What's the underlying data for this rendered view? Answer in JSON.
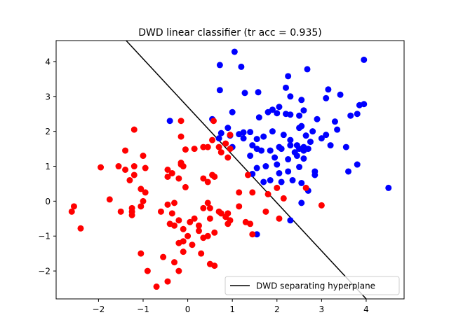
{
  "chart_data": {
    "type": "scatter",
    "title": "DWD linear classifier (tr acc = 0.935)",
    "xlabel": "",
    "ylabel": "",
    "xlim": [
      -2.95,
      4.85
    ],
    "ylim": [
      -2.8,
      4.6
    ],
    "xticks": [
      -2,
      -1,
      0,
      1,
      2,
      3,
      4
    ],
    "yticks": [
      -2,
      -1,
      0,
      1,
      2,
      3,
      4
    ],
    "tick_labels_x": [
      "−2",
      "−1",
      "0",
      "1",
      "2",
      "3",
      "4"
    ],
    "tick_labels_y": [
      "−2",
      "−1",
      "0",
      "1",
      "2",
      "3",
      "4"
    ],
    "grid": false,
    "legend": {
      "placement": "lower-right",
      "entries": [
        "DWD separating hyperplane"
      ]
    },
    "hyperplane": {
      "name": "DWD separating hyperplane",
      "color": "#000000",
      "x": [
        -1.38,
        4.0
      ],
      "y": [
        4.6,
        -2.8
      ]
    },
    "series": [
      {
        "color": "#0000ff",
        "points": [
          [
            1.05,
            4.28
          ],
          [
            0.72,
            3.9
          ],
          [
            1.2,
            3.85
          ],
          [
            2.68,
            3.78
          ],
          [
            3.95,
            4.05
          ],
          [
            2.25,
            3.58
          ],
          [
            0.72,
            3.18
          ],
          [
            1.28,
            3.1
          ],
          [
            1.58,
            3.12
          ],
          [
            2.2,
            3.25
          ],
          [
            3.15,
            3.2
          ],
          [
            3.1,
            2.95
          ],
          [
            3.42,
            3.05
          ],
          [
            2.3,
            3.0
          ],
          [
            2.55,
            2.9
          ],
          [
            2.05,
            2.7
          ],
          [
            2.9,
            2.35
          ],
          [
            3.65,
            2.45
          ],
          [
            3.3,
            2.28
          ],
          [
            3.85,
            2.75
          ],
          [
            3.95,
            2.78
          ],
          [
            3.8,
            2.5
          ],
          [
            2.6,
            2.6
          ],
          [
            2.5,
            2.45
          ],
          [
            2.2,
            2.5
          ],
          [
            2.3,
            2.48
          ],
          [
            1.8,
            2.55
          ],
          [
            1.9,
            2.62
          ],
          [
            2.0,
            2.52
          ],
          [
            1.6,
            2.4
          ],
          [
            1.0,
            2.55
          ],
          [
            0.55,
            2.35
          ],
          [
            0.9,
            2.1
          ],
          [
            0.75,
            1.95
          ],
          [
            0.95,
            1.88
          ],
          [
            1.15,
            1.92
          ],
          [
            1.25,
            1.97
          ],
          [
            1.4,
            1.98
          ],
          [
            1.55,
            1.78
          ],
          [
            1.7,
            1.85
          ],
          [
            1.9,
            2.0
          ],
          [
            2.15,
            1.9
          ],
          [
            2.5,
            2.1
          ],
          [
            2.55,
            2.15
          ],
          [
            2.8,
            2.0
          ],
          [
            2.65,
            1.88
          ],
          [
            3.1,
            1.9
          ],
          [
            2.75,
            1.7
          ],
          [
            2.45,
            1.6
          ],
          [
            2.3,
            1.75
          ],
          [
            2.05,
            1.55
          ],
          [
            2.3,
            1.6
          ],
          [
            2.5,
            1.5
          ],
          [
            2.6,
            1.45
          ],
          [
            2.4,
            1.4
          ],
          [
            2.6,
            1.55
          ],
          [
            2.7,
            1.5
          ],
          [
            3.0,
            1.8
          ],
          [
            3.2,
            1.6
          ],
          [
            3.35,
            2.05
          ],
          [
            3.55,
            1.55
          ],
          [
            1.0,
            1.55
          ],
          [
            1.25,
            1.8
          ],
          [
            1.45,
            1.6
          ],
          [
            1.55,
            1.5
          ],
          [
            1.65,
            1.45
          ],
          [
            1.85,
            1.45
          ],
          [
            2.1,
            1.5
          ],
          [
            1.4,
            1.3
          ],
          [
            1.95,
            1.25
          ],
          [
            2.25,
            1.2
          ],
          [
            2.45,
            1.3
          ],
          [
            2.0,
            1.05
          ],
          [
            1.55,
            0.95
          ],
          [
            1.75,
            1.0
          ],
          [
            2.05,
            0.8
          ],
          [
            2.25,
            0.85
          ],
          [
            2.5,
            0.98
          ],
          [
            2.6,
            1.22
          ],
          [
            2.85,
            0.75
          ],
          [
            2.85,
            0.85
          ],
          [
            3.6,
            0.85
          ],
          [
            3.8,
            1.05
          ],
          [
            4.5,
            0.38
          ],
          [
            1.45,
            0.78
          ],
          [
            1.7,
            0.55
          ],
          [
            1.85,
            0.6
          ],
          [
            2.1,
            0.55
          ],
          [
            2.35,
            0.6
          ],
          [
            2.55,
            0.52
          ],
          [
            2.7,
            0.3
          ],
          [
            2.55,
            -0.05
          ],
          [
            2.3,
            -0.55
          ],
          [
            1.55,
            -0.95
          ],
          [
            -0.4,
            2.3
          ],
          [
            0.7,
            1.8
          ]
        ]
      },
      {
        "color": "#ff0000",
        "points": [
          [
            -1.2,
            2.05
          ],
          [
            -0.15,
            2.3
          ],
          [
            0.58,
            2.3
          ],
          [
            -0.15,
            1.85
          ],
          [
            -1.4,
            1.45
          ],
          [
            -1.55,
            1.0
          ],
          [
            -1.0,
            1.3
          ],
          [
            -1.95,
            0.97
          ],
          [
            -1.2,
            1.0
          ],
          [
            -1.4,
            0.9
          ],
          [
            -1.2,
            0.75
          ],
          [
            -1.3,
            0.6
          ],
          [
            -0.95,
            0.95
          ],
          [
            -1.05,
            0.35
          ],
          [
            -0.95,
            0.25
          ],
          [
            -0.15,
            1.05
          ],
          [
            -0.05,
            1.48
          ],
          [
            0.15,
            1.5
          ],
          [
            0.35,
            1.55
          ],
          [
            0.45,
            1.55
          ],
          [
            0.55,
            1.75
          ],
          [
            0.7,
            1.55
          ],
          [
            0.85,
            1.65
          ],
          [
            0.75,
            1.4
          ],
          [
            0.95,
            1.5
          ],
          [
            0.95,
            1.9
          ],
          [
            0.9,
            1.25
          ],
          [
            -0.15,
            1.1
          ],
          [
            -0.1,
            1.0
          ],
          [
            -0.45,
            0.9
          ],
          [
            -0.35,
            0.8
          ],
          [
            -0.45,
            0.7
          ],
          [
            -0.2,
            0.65
          ],
          [
            -0.05,
            0.4
          ],
          [
            0.35,
            0.65
          ],
          [
            0.55,
            0.75
          ],
          [
            0.6,
            0.7
          ],
          [
            0.45,
            0.55
          ],
          [
            -1.75,
            0.05
          ],
          [
            -1.5,
            -0.3
          ],
          [
            -1.25,
            -0.2
          ],
          [
            -1.25,
            -0.4
          ],
          [
            -1.05,
            -0.15
          ],
          [
            -1.0,
            0.0
          ],
          [
            -0.6,
            -0.3
          ],
          [
            -0.45,
            -0.1
          ],
          [
            -0.3,
            -0.05
          ],
          [
            -0.35,
            -0.35
          ],
          [
            -0.2,
            -0.55
          ],
          [
            -0.1,
            -0.8
          ],
          [
            0.05,
            -0.6
          ],
          [
            0.15,
            -0.5
          ],
          [
            0.25,
            -0.7
          ],
          [
            0.35,
            -0.2
          ],
          [
            0.45,
            -0.05
          ],
          [
            0.5,
            -0.2
          ],
          [
            0.7,
            -0.3
          ],
          [
            0.75,
            -0.35
          ],
          [
            0.85,
            -0.45
          ],
          [
            0.9,
            -0.35
          ],
          [
            0.95,
            -0.55
          ],
          [
            1.15,
            -0.15
          ],
          [
            1.3,
            -0.6
          ],
          [
            0.9,
            -0.65
          ],
          [
            0.6,
            -0.9
          ],
          [
            0.45,
            -1.0
          ],
          [
            0.35,
            -1.05
          ],
          [
            0.0,
            -1.0
          ],
          [
            -0.1,
            -1.15
          ],
          [
            -0.2,
            -1.2
          ],
          [
            -0.4,
            -0.65
          ],
          [
            -0.3,
            -0.7
          ],
          [
            0.25,
            -0.85
          ],
          [
            0.5,
            -0.5
          ],
          [
            0.1,
            -1.25
          ],
          [
            -0.1,
            -1.45
          ],
          [
            0.3,
            -1.5
          ],
          [
            0.5,
            -1.8
          ],
          [
            -0.3,
            -1.75
          ],
          [
            -0.55,
            -1.6
          ],
          [
            -0.2,
            -2.0
          ],
          [
            -0.45,
            -2.3
          ],
          [
            -0.7,
            -2.45
          ],
          [
            -0.9,
            -2.0
          ],
          [
            -1.05,
            -1.5
          ],
          [
            -2.55,
            -0.15
          ],
          [
            -2.6,
            -0.3
          ],
          [
            -2.4,
            -0.78
          ],
          [
            -1.25,
            -0.3
          ],
          [
            0.6,
            -1.85
          ],
          [
            1.45,
            0.25
          ],
          [
            1.8,
            0.2
          ],
          [
            1.75,
            -0.3
          ],
          [
            1.4,
            -0.65
          ],
          [
            1.45,
            -0.95
          ],
          [
            2.05,
            -0.5
          ],
          [
            2.0,
            0.38
          ],
          [
            2.15,
            0.08
          ],
          [
            2.65,
            0.38
          ],
          [
            3.0,
            -0.12
          ],
          [
            1.15,
            0.25
          ],
          [
            1.35,
            0.75
          ]
        ]
      }
    ]
  }
}
